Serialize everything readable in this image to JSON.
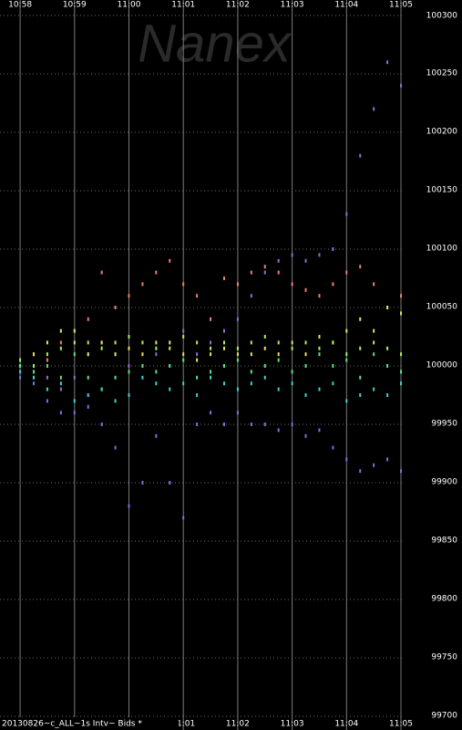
{
  "chart_data": {
    "type": "scatter",
    "watermark": "Nanex",
    "footnote": "20130826~c_ALL~1s Intv~ Bids *",
    "xlim": [
      657.63,
      665.05
    ],
    "xticks": [
      {
        "value": 658,
        "label": "10:58"
      },
      {
        "value": 659,
        "label": "10:59"
      },
      {
        "value": 660,
        "label": "11:00"
      },
      {
        "value": 661,
        "label": "11:01"
      },
      {
        "value": 662,
        "label": "11:02"
      },
      {
        "value": 663,
        "label": "11:03"
      },
      {
        "value": 664,
        "label": "11:04"
      },
      {
        "value": 665,
        "label": "11:05"
      }
    ],
    "ylim": [
      99700,
      100300
    ],
    "yticks": [
      99700,
      99750,
      99800,
      99850,
      99900,
      99950,
      100000,
      100050,
      100100,
      100150,
      100200,
      100250,
      100300
    ],
    "grid": true,
    "x": [
      658,
      658.25,
      658.5,
      658.75,
      659,
      659.25,
      659.5,
      659.75,
      660,
      660.25,
      660.5,
      660.75,
      661,
      661.25,
      661.5,
      661.75,
      662,
      662.25,
      662.5,
      662.75,
      663,
      663.25,
      663.5,
      663.75,
      664,
      664.25,
      664.5,
      664.75,
      665
    ],
    "series": [
      {
        "color": "#f08070",
        "values": [
          100000,
          100010,
          100005,
          100020,
          100030,
          100040,
          100080,
          100050,
          100060,
          100070,
          100080,
          100090,
          100070,
          100060,
          100040,
          100075,
          100070,
          100080,
          100085,
          100080,
          100070,
          100065,
          100060,
          100070,
          100080,
          100085,
          100070,
          100050,
          100060
        ]
      },
      {
        "color": "#7474e0",
        "values": [
          99990,
          99985,
          99970,
          99960,
          99960,
          99965,
          99950,
          99930,
          99880,
          99900,
          99940,
          99900,
          99870,
          99950,
          99960,
          99950,
          99960,
          99950,
          99950,
          99945,
          99950,
          99940,
          99945,
          99930,
          99920,
          99910,
          99915,
          99920,
          99910
        ]
      },
      {
        "color": "#9a68d0",
        "values": [
          100000,
          100000,
          99990,
          99980,
          99990,
          100010,
          100020,
          100010,
          100000,
          100000,
          100010,
          100020,
          100030,
          100010,
          100020,
          100030,
          100040,
          100060,
          100080,
          100090,
          100095,
          100090,
          100095,
          100100,
          100130,
          100180,
          100220,
          100260,
          100240
        ]
      },
      {
        "color": "#e8e060",
        "values": [
          100000,
          100010,
          100020,
          100030,
          100020,
          100010,
          100020,
          100010,
          100015,
          100010,
          100020,
          100015,
          100010,
          100005,
          100010,
          100015,
          100010,
          100010,
          100015,
          100010,
          100020,
          100010,
          100025,
          100020,
          100030,
          100040,
          100030,
          100050,
          100045
        ]
      },
      {
        "color": "#60e080",
        "values": [
          100000,
          99995,
          100000,
          99990,
          100010,
          99990,
          99980,
          99990,
          99995,
          100000,
          99995,
          100000,
          100005,
          99990,
          99995,
          100000,
          100005,
          99995,
          100000,
          100005,
          99995,
          100000,
          100010,
          100000,
          100005,
          99990,
          100010,
          100000,
          99995
        ]
      },
      {
        "color": "#40d0d0",
        "values": [
          99995,
          99990,
          99980,
          99985,
          99970,
          99975,
          99980,
          99970,
          99975,
          99990,
          99985,
          99980,
          99985,
          99975,
          99990,
          99985,
          99980,
          99985,
          99990,
          99980,
          99985,
          99975,
          99980,
          99985,
          99970,
          99975,
          99980,
          99975,
          99985
        ]
      },
      {
        "color": "#a8f060",
        "values": [
          100005,
          100000,
          100010,
          100015,
          100030,
          100020,
          100015,
          100020,
          100025,
          100020,
          100015,
          100020,
          100025,
          100020,
          100015,
          100020,
          100015,
          100020,
          100025,
          100020,
          100015,
          100020,
          100015,
          100020,
          100010,
          100015,
          100020,
          100015,
          100010
        ]
      }
    ]
  }
}
